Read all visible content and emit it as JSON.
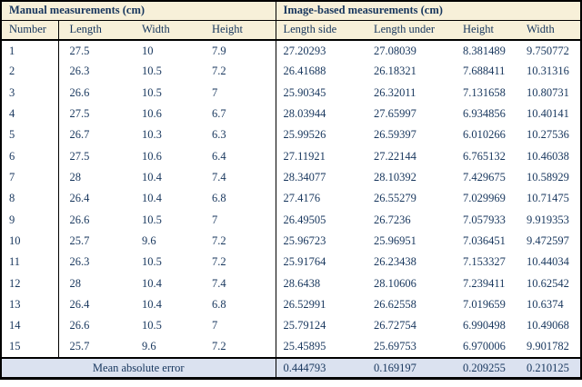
{
  "colors": {
    "header_bg": "#F7F0D9",
    "footer_bg": "#DBE2F0",
    "text": "#17365D",
    "border": "#000000"
  },
  "table": {
    "section_titles": [
      "Manual measurements (cm)",
      "Image-based measurements (cm)"
    ],
    "columns": [
      "Number",
      "Length",
      "Width",
      "Height",
      "Length side",
      "Length under",
      "Height",
      "Width"
    ],
    "rows": [
      [
        "1",
        "27.5",
        "10",
        "7.9",
        "27.20293",
        "27.08039",
        "8.381489",
        "9.750772"
      ],
      [
        "2",
        "26.3",
        "10.5",
        "7.2",
        "26.41688",
        "26.18321",
        "7.688411",
        "10.31316"
      ],
      [
        "3",
        "26.6",
        "10.5",
        "7",
        "25.90345",
        "26.32011",
        "7.131658",
        "10.80731"
      ],
      [
        "4",
        "27.5",
        "10.6",
        "6.7",
        "28.03944",
        "27.65997",
        "6.934856",
        "10.40141"
      ],
      [
        "5",
        "26.7",
        "10.3",
        "6.3",
        "25.99526",
        "26.59397",
        "6.010266",
        "10.27536"
      ],
      [
        "6",
        "27.5",
        "10.6",
        "6.4",
        "27.11921",
        "27.22144",
        "6.765132",
        "10.46038"
      ],
      [
        "7",
        "28",
        "10.4",
        "7.4",
        "28.34077",
        "28.10392",
        "7.429675",
        "10.58929"
      ],
      [
        "8",
        "26.4",
        "10.4",
        "6.8",
        "27.4176",
        "26.55279",
        "7.029969",
        "10.71475"
      ],
      [
        "9",
        "26.6",
        "10.5",
        "7",
        "26.49505",
        "26.7236",
        "7.057933",
        "9.919353"
      ],
      [
        "10",
        "25.7",
        "9.6",
        "7.2",
        "25.96723",
        "25.96951",
        "7.036451",
        "9.472597"
      ],
      [
        "11",
        "26.3",
        "10.5",
        "7.2",
        "25.91764",
        "26.23438",
        "7.153327",
        "10.44034"
      ],
      [
        "12",
        "28",
        "10.4",
        "7.4",
        "28.6438",
        "28.10606",
        "7.239411",
        "10.62542"
      ],
      [
        "13",
        "26.4",
        "10.4",
        "6.8",
        "26.52991",
        "26.62558",
        "7.019659",
        "10.6374"
      ],
      [
        "14",
        "26.6",
        "10.5",
        "7",
        "25.79124",
        "26.72754",
        "6.990498",
        "10.49068"
      ],
      [
        "15",
        "25.7",
        "9.6",
        "7.2",
        "25.45895",
        "25.69753",
        "6.970006",
        "9.901782"
      ]
    ],
    "footer": {
      "label": "Mean absolute error",
      "values": [
        "0.444793",
        "0.169197",
        "0.209255",
        "0.210125"
      ]
    }
  }
}
